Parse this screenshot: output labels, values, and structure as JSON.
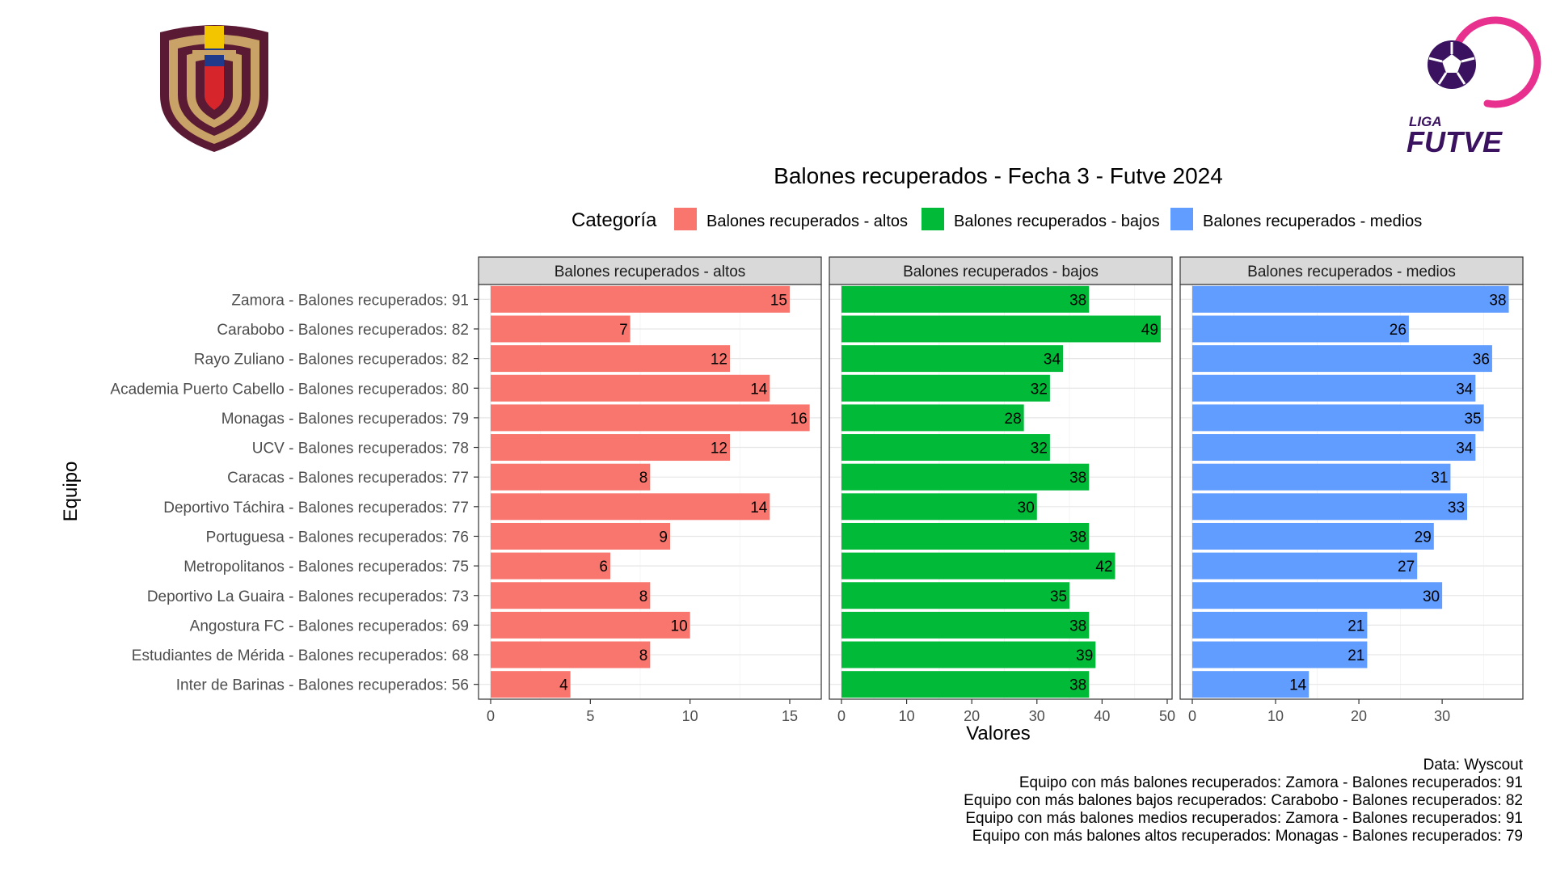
{
  "chart_data": {
    "type": "bar",
    "orientation": "horizontal",
    "faceted": true,
    "title": "Balones recuperados - Fecha 3 - Futve 2024",
    "xlabel": "Valores",
    "ylabel": "Equipo",
    "legend": {
      "title": "Categoría",
      "position": "top",
      "entries": [
        {
          "label": "Balones recuperados - altos",
          "color": "#F8766D"
        },
        {
          "label": "Balones recuperados - bajos",
          "color": "#00BA38"
        },
        {
          "label": "Balones recuperados - medios",
          "color": "#619CFF"
        }
      ]
    },
    "categories": [
      "Zamora - Balones recuperados: 91",
      "Carabobo - Balones recuperados: 82",
      "Rayo Zuliano - Balones recuperados: 82",
      "Academia Puerto Cabello - Balones recuperados: 80",
      "Monagas - Balones recuperados: 79",
      "UCV - Balones recuperados: 78",
      "Caracas - Balones recuperados: 77",
      "Deportivo Táchira - Balones recuperados: 77",
      "Portuguesa - Balones recuperados: 76",
      "Metropolitanos - Balones recuperados: 75",
      "Deportivo La Guaira - Balones recuperados: 73",
      "Angostura FC - Balones recuperados: 69",
      "Estudiantes de Mérida - Balones recuperados: 68",
      "Inter de Barinas - Balones recuperados: 56"
    ],
    "series": [
      {
        "name": "Balones recuperados - altos",
        "color": "#F8766D",
        "values": [
          15,
          7,
          12,
          14,
          16,
          12,
          8,
          14,
          9,
          6,
          8,
          10,
          8,
          4
        ],
        "xlim": [
          0,
          16.5
        ],
        "ticks": [
          0,
          5,
          10,
          15
        ]
      },
      {
        "name": "Balones recuperados - bajos",
        "color": "#00BA38",
        "values": [
          38,
          49,
          34,
          32,
          28,
          32,
          38,
          30,
          38,
          42,
          35,
          38,
          39,
          38
        ],
        "xlim": [
          0,
          50.5
        ],
        "ticks": [
          0,
          10,
          20,
          30,
          40,
          50
        ]
      },
      {
        "name": "Balones recuperados - medios",
        "color": "#619CFF",
        "values": [
          38,
          26,
          36,
          34,
          35,
          34,
          31,
          33,
          29,
          27,
          30,
          21,
          21,
          14
        ],
        "xlim": [
          0,
          39.5
        ],
        "ticks": [
          0,
          10,
          20,
          30
        ]
      }
    ],
    "grid": true,
    "caption": [
      "Data: Wyscout ",
      "Equipo con más balones recuperados: Zamora - Balones recuperados: 91",
      "Equipo con más balones bajos recuperados: Carabobo - Balones recuperados: 82",
      "Equipo con más balones medios recuperados: Zamora - Balones recuperados: 91",
      "Equipo con más balones altos recuperados: Monagas - Balones recuperados: 79"
    ]
  },
  "logos": {
    "left": {
      "name": "FVF shield",
      "colors": [
        "#5B1A33",
        "#C9A267",
        "#F2C500",
        "#1F3A8A",
        "#D7262B"
      ]
    },
    "right": {
      "name": "Liga FUTVE",
      "text_top": "LIGA",
      "text_bottom": "FUTVE",
      "colors": [
        "#E8308F",
        "#3A1260"
      ]
    }
  }
}
